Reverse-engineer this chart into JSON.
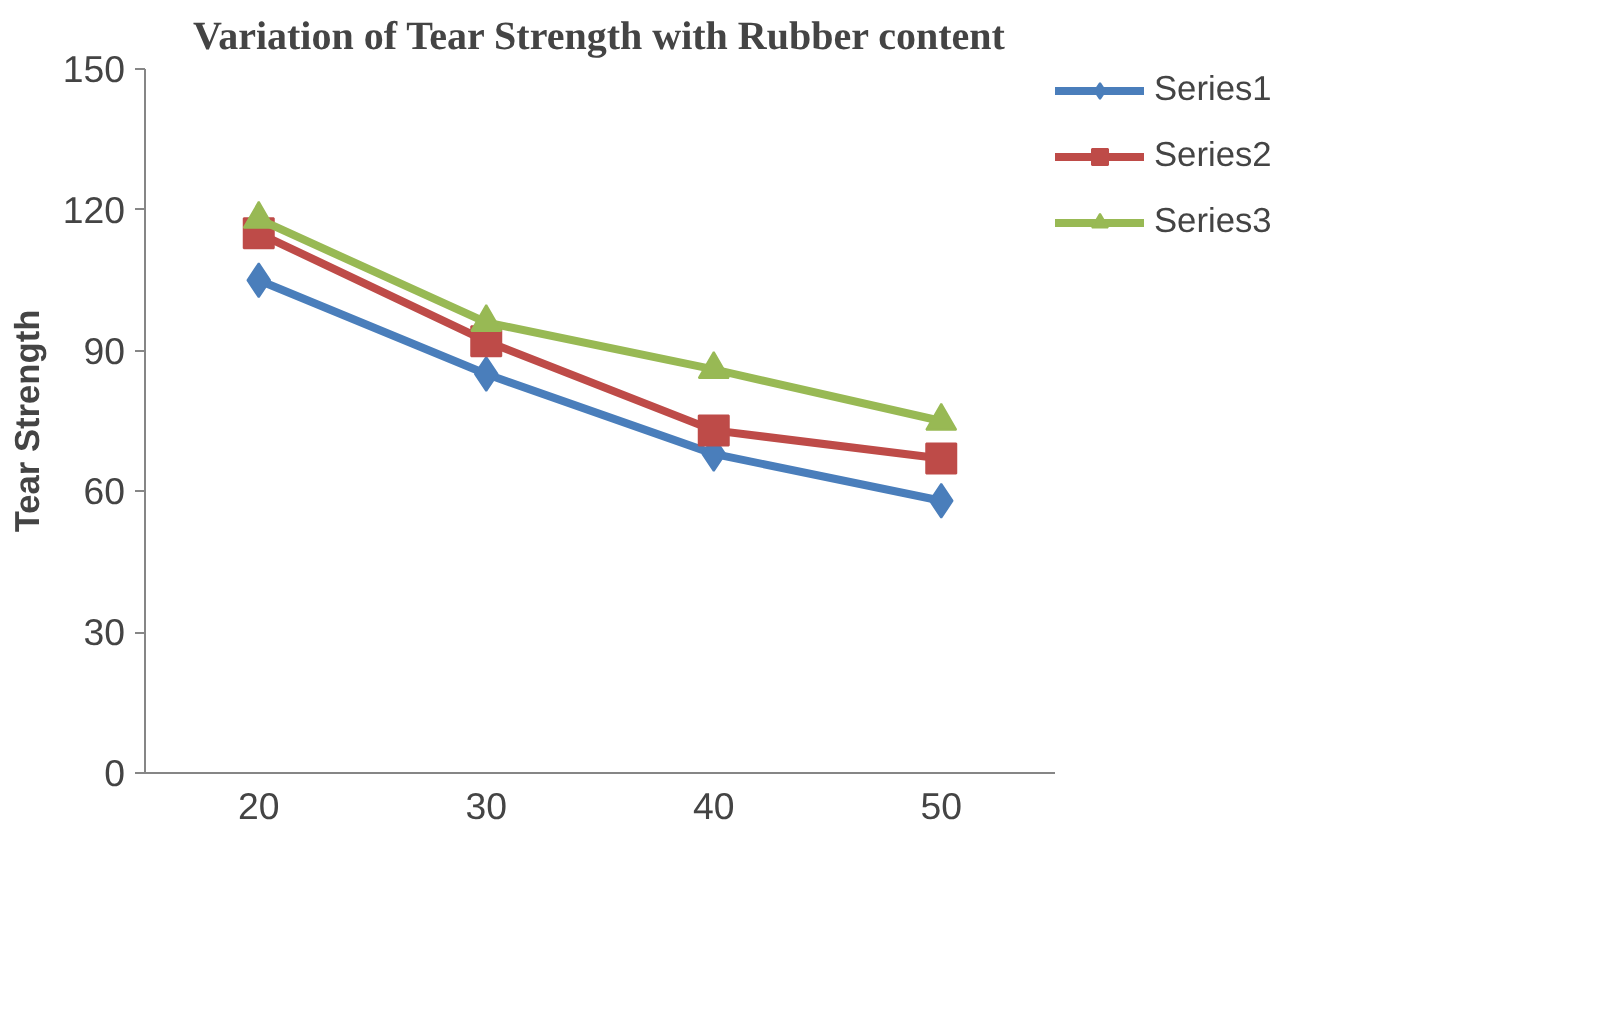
{
  "chart_data": {
    "type": "line",
    "title": "Variation of Tear Strength with Rubber content",
    "ylabel": "Tear Strength",
    "categories": [
      "20",
      "30",
      "40",
      "50"
    ],
    "series": [
      {
        "name": "Series1",
        "color": "#4a7ebb",
        "marker": "diamond",
        "values": [
          105,
          85,
          68,
          58
        ]
      },
      {
        "name": "Series2",
        "color": "#be4b48",
        "marker": "square",
        "values": [
          115,
          92,
          73,
          67
        ]
      },
      {
        "name": "Series3",
        "color": "#98b954",
        "marker": "triangle",
        "values": [
          118,
          96,
          86,
          75
        ]
      }
    ],
    "ylim": [
      0,
      150
    ],
    "yticks": [
      0,
      30,
      60,
      90,
      120,
      150
    ],
    "grid": false,
    "legend": "right",
    "line_style": "solid"
  }
}
